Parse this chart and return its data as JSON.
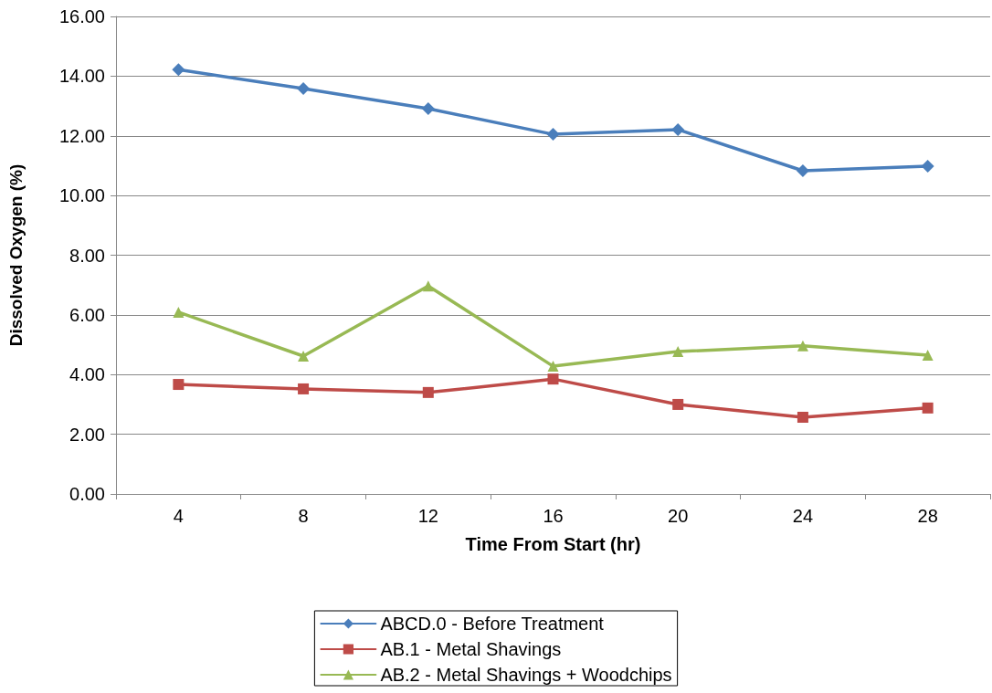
{
  "chart_data": {
    "type": "line",
    "xlabel": "Time From Start (hr)",
    "ylabel": "Dissolved Oxygen (%)",
    "categories": [
      "4",
      "8",
      "12",
      "16",
      "20",
      "24",
      "28"
    ],
    "series": [
      {
        "name": "ABCD.0 - Before Treatment",
        "color": "#4a7ebb",
        "marker": "diamond",
        "values": [
          14.22,
          13.58,
          12.91,
          12.05,
          12.21,
          10.83,
          10.98
        ]
      },
      {
        "name": "AB.1 - Metal Shavings",
        "color": "#be4b48",
        "marker": "square",
        "values": [
          3.67,
          3.52,
          3.4,
          3.85,
          3.0,
          2.57,
          2.88
        ]
      },
      {
        "name": "AB.2 - Metal Shavings + Woodchips",
        "color": "#98b954",
        "marker": "triangle",
        "values": [
          6.09,
          4.62,
          6.97,
          4.28,
          4.77,
          4.96,
          4.65
        ]
      }
    ],
    "ylim": [
      0,
      16
    ],
    "yticks": [
      {
        "value": 0,
        "label": "0.00"
      },
      {
        "value": 2,
        "label": "2.00"
      },
      {
        "value": 4,
        "label": "4.00"
      },
      {
        "value": 6,
        "label": "6.00"
      },
      {
        "value": 8,
        "label": "8.00"
      },
      {
        "value": 10,
        "label": "10.00"
      },
      {
        "value": 12,
        "label": "12.00"
      },
      {
        "value": 14,
        "label": "14.00"
      },
      {
        "value": 16,
        "label": "16.00"
      }
    ],
    "grid": "y",
    "legend": "bottom",
    "line_style": "solid"
  }
}
